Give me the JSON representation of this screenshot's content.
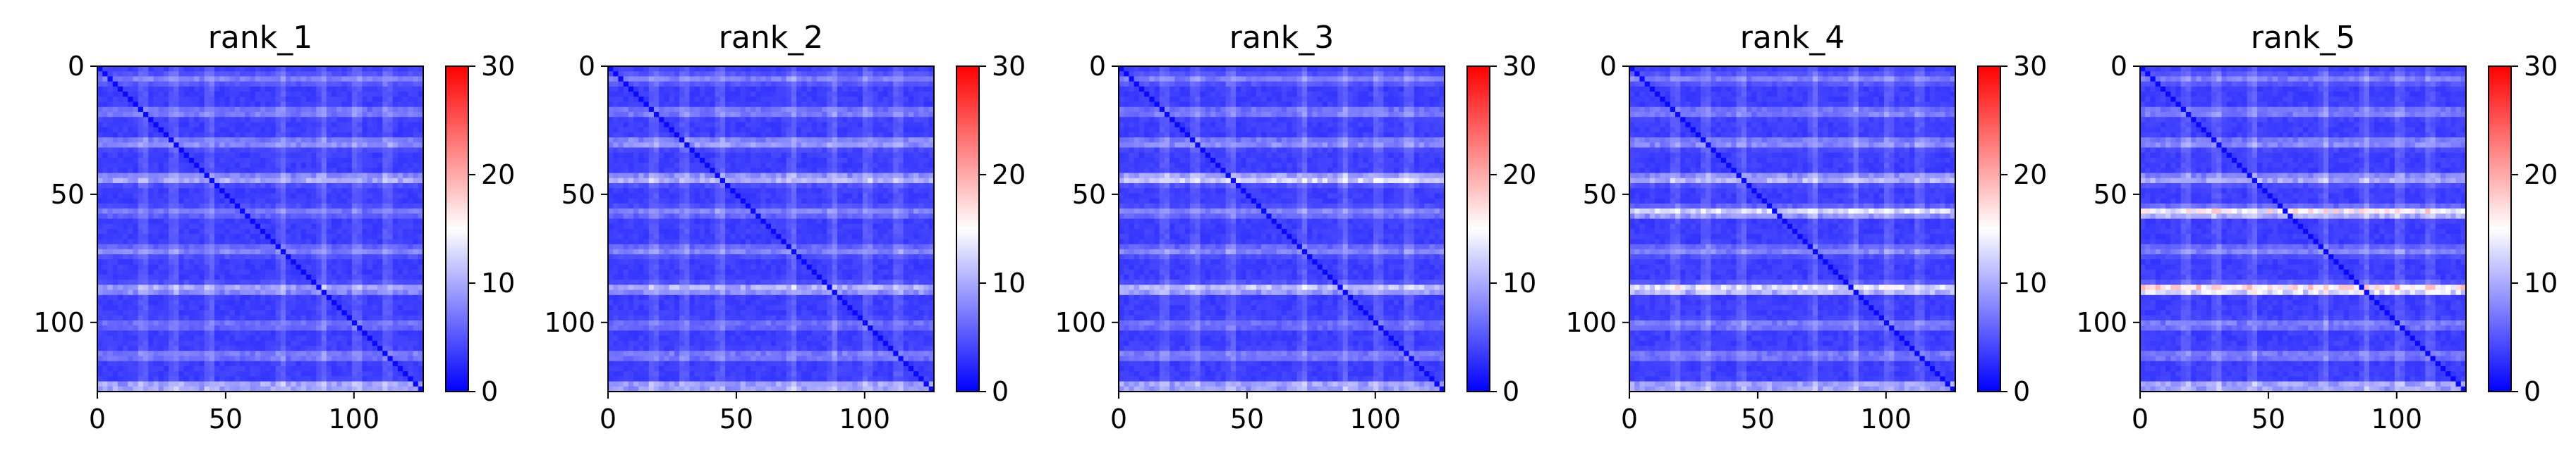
{
  "chart_data": [
    {
      "type": "heatmap",
      "title": "rank_1",
      "xlim": [
        0,
        127
      ],
      "ylim": [
        127,
        0
      ],
      "xticks": [
        "0",
        "50",
        "100"
      ],
      "yticks": [
        "0",
        "50",
        "100"
      ],
      "colorbar": {
        "min": 0,
        "max": 30,
        "ticks": [
          "0",
          "10",
          "20",
          "30"
        ],
        "colormap": "bwr",
        "colors": [
          "#0000ff",
          "#ffffff",
          "#ff0000"
        ]
      },
      "grid": false,
      "diagonal": "darker blue line from (0,0) to (127,127)",
      "bands": [
        {
          "y": 5,
          "value": 7
        },
        {
          "y": 18,
          "value": 8
        },
        {
          "y": 30,
          "value": 9
        },
        {
          "y": 44,
          "value": 11
        },
        {
          "y": 57,
          "value": 7
        },
        {
          "y": 72,
          "value": 8
        },
        {
          "y": 87,
          "value": 11
        },
        {
          "y": 101,
          "value": 7
        },
        {
          "y": 113,
          "value": 8
        },
        {
          "y": 125,
          "value": 12
        }
      ]
    },
    {
      "type": "heatmap",
      "title": "rank_2",
      "xlim": [
        0,
        127
      ],
      "ylim": [
        127,
        0
      ],
      "xticks": [
        "0",
        "50",
        "100"
      ],
      "yticks": [
        "0",
        "50",
        "100"
      ],
      "colorbar": {
        "min": 0,
        "max": 30,
        "ticks": [
          "0",
          "10",
          "20",
          "30"
        ],
        "colormap": "bwr",
        "colors": [
          "#0000ff",
          "#ffffff",
          "#ff0000"
        ]
      },
      "grid": false,
      "bands": [
        {
          "y": 5,
          "value": 7
        },
        {
          "y": 18,
          "value": 8
        },
        {
          "y": 30,
          "value": 10
        },
        {
          "y": 44,
          "value": 12
        },
        {
          "y": 57,
          "value": 8
        },
        {
          "y": 72,
          "value": 8
        },
        {
          "y": 87,
          "value": 12
        },
        {
          "y": 101,
          "value": 7
        },
        {
          "y": 113,
          "value": 8
        },
        {
          "y": 125,
          "value": 12
        }
      ]
    },
    {
      "type": "heatmap",
      "title": "rank_3",
      "xlim": [
        0,
        127
      ],
      "ylim": [
        127,
        0
      ],
      "xticks": [
        "0",
        "50",
        "100"
      ],
      "yticks": [
        "0",
        "50",
        "100"
      ],
      "colorbar": {
        "min": 0,
        "max": 30,
        "ticks": [
          "0",
          "10",
          "20",
          "30"
        ],
        "colormap": "bwr",
        "colors": [
          "#0000ff",
          "#ffffff",
          "#ff0000"
        ]
      },
      "grid": false,
      "bands": [
        {
          "y": 5,
          "value": 7
        },
        {
          "y": 18,
          "value": 8
        },
        {
          "y": 30,
          "value": 9
        },
        {
          "y": 44,
          "value": 14
        },
        {
          "y": 57,
          "value": 8
        },
        {
          "y": 72,
          "value": 8
        },
        {
          "y": 87,
          "value": 13
        },
        {
          "y": 101,
          "value": 7
        },
        {
          "y": 113,
          "value": 8
        },
        {
          "y": 125,
          "value": 12
        }
      ]
    },
    {
      "type": "heatmap",
      "title": "rank_4",
      "xlim": [
        0,
        127
      ],
      "ylim": [
        127,
        0
      ],
      "xticks": [
        "0",
        "50",
        "100"
      ],
      "yticks": [
        "0",
        "50",
        "100"
      ],
      "colorbar": {
        "min": 0,
        "max": 30,
        "ticks": [
          "0",
          "10",
          "20",
          "30"
        ],
        "colormap": "bwr",
        "colors": [
          "#0000ff",
          "#ffffff",
          "#ff0000"
        ]
      },
      "grid": false,
      "bands": [
        {
          "y": 5,
          "value": 7
        },
        {
          "y": 18,
          "value": 8
        },
        {
          "y": 30,
          "value": 9
        },
        {
          "y": 44,
          "value": 12
        },
        {
          "y": 57,
          "value": 14
        },
        {
          "y": 72,
          "value": 8
        },
        {
          "y": 87,
          "value": 16
        },
        {
          "y": 101,
          "value": 8
        },
        {
          "y": 113,
          "value": 8
        },
        {
          "y": 125,
          "value": 12
        }
      ]
    },
    {
      "type": "heatmap",
      "title": "rank_5",
      "xlim": [
        0,
        127
      ],
      "ylim": [
        127,
        0
      ],
      "xticks": [
        "0",
        "50",
        "100"
      ],
      "yticks": [
        "0",
        "50",
        "100"
      ],
      "colorbar": {
        "min": 0,
        "max": 30,
        "ticks": [
          "0",
          "10",
          "20",
          "30"
        ],
        "colormap": "bwr",
        "colors": [
          "#0000ff",
          "#ffffff",
          "#ff0000"
        ]
      },
      "grid": false,
      "bands": [
        {
          "y": 5,
          "value": 7
        },
        {
          "y": 18,
          "value": 8
        },
        {
          "y": 30,
          "value": 9
        },
        {
          "y": 44,
          "value": 11
        },
        {
          "y": 57,
          "value": 17
        },
        {
          "y": 72,
          "value": 8
        },
        {
          "y": 87,
          "value": 20
        },
        {
          "y": 101,
          "value": 8
        },
        {
          "y": 113,
          "value": 8
        },
        {
          "y": 125,
          "value": 12
        }
      ]
    }
  ]
}
